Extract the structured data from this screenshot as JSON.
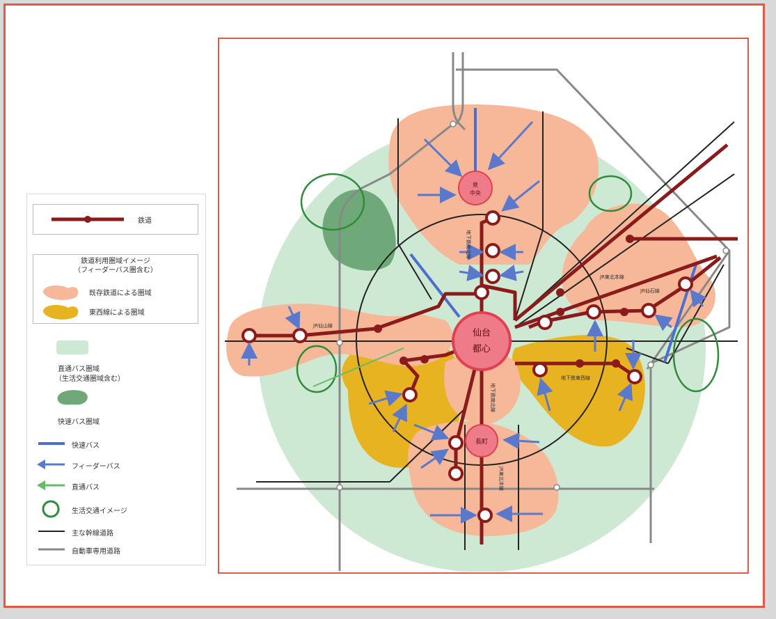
{
  "center": {
    "line1": "仙台",
    "line2": "都心"
  },
  "stations": {
    "north": {
      "line1": "泉",
      "line2": "中央"
    },
    "south": {
      "label": "長町"
    }
  },
  "line_labels": {
    "senzan": "JR仙山線",
    "tozai_west": "JR仙石線",
    "tohoku": "JR東北本線",
    "senseki": "JR仙石線",
    "subway_north": "地下鉄南北線",
    "subway_east": "地下鉄東西線",
    "subway_south": "地下鉄南北線",
    "tohoku_south": "JR東北本線"
  },
  "legend": {
    "railway": "鉄道",
    "area_title": "鉄道利用圏域イメージ",
    "area_subtitle": "（フィーダーバス圏含む）",
    "existing": "既存鉄道による圏域",
    "tozai": "東西線による圏域",
    "direct_bus": "直通バス圏域",
    "direct_bus_note": "（生活交通圏域含む）",
    "rapid_area": "快速バス圏域",
    "rapid_bus": "快速バス",
    "feeder_bus": "フィーダーバス",
    "direct_bus_line": "直通バス",
    "local_transit": "生活交通イメージ",
    "trunk_road": "主な幹線道路",
    "expressway": "自動車専用道路"
  },
  "colors": {
    "frame": "#e05a45",
    "railway": "#8b1a1a",
    "existing_area": "#f6b898",
    "tozai_area": "#e8b320",
    "direct_bus_area": "#cde9d4",
    "rapid_area": "#6fa97a",
    "rapid_bus": "#4a6fd0",
    "feeder_bus": "#5a78cc",
    "direct_bus_line": "#66bb66",
    "local_transit": "#2e8b3a",
    "trunk_road": "#222222",
    "expressway": "#888888",
    "center_fill": "#f07b88"
  }
}
